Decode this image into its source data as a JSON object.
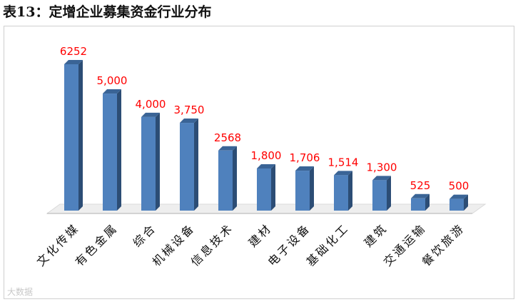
{
  "title": "表13：定增企业募集资金行业分布",
  "watermark": "大数据",
  "colors": {
    "bar_front": "#4f81bd",
    "bar_side": "#2c4d75",
    "bar_top": "#3a6496",
    "value_label": "#ff0000",
    "floor": "#d9d9d9"
  },
  "chart_data": {
    "type": "bar",
    "categories": [
      "文化传媒",
      "有色金属",
      "综合",
      "机械设备",
      "信息技术",
      "建材",
      "电子设备",
      "基础化工",
      "建筑",
      "交通运输",
      "餐饮旅游"
    ],
    "values": [
      6252,
      5000,
      4000,
      3750,
      2568,
      1800,
      1706,
      1514,
      1300,
      525,
      500
    ],
    "value_labels": [
      "6252",
      "5,000",
      "4,000",
      "3,750",
      "2568",
      "1,800",
      "1,706",
      "1,514",
      "1,300",
      "525",
      "500"
    ],
    "title": "表13：定增企业募集资金行业分布",
    "xlabel": "",
    "ylabel": "",
    "ylim": [
      0,
      7000
    ],
    "grid": false,
    "legend": "none",
    "style": "3d-column"
  }
}
